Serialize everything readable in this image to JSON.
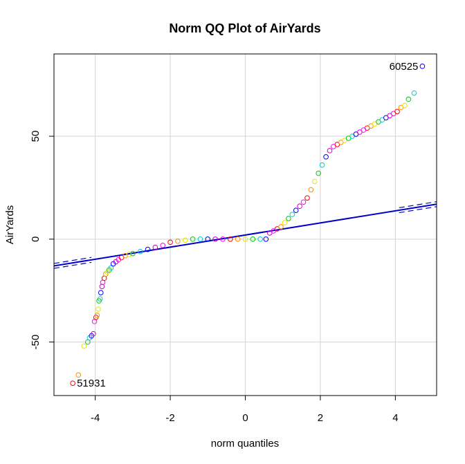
{
  "chart_data": {
    "type": "scatter",
    "title": "Norm QQ Plot of AirYards",
    "xlabel": "norm quantiles",
    "ylabel": "AirYards",
    "xlim": [
      -5.1,
      5.1
    ],
    "ylim": [
      -76,
      90
    ],
    "x_ticks": [
      -4,
      -2,
      0,
      2,
      4
    ],
    "y_ticks": [
      -50,
      0,
      50
    ],
    "grid": true,
    "legend": "none",
    "reference_line": {
      "color": "#0000cc",
      "points": [
        [
          -5.1,
          -13
        ],
        [
          5.1,
          17
        ]
      ]
    },
    "point_colors": [
      "#ff0000",
      "#ff8c00",
      "#e6e600",
      "#00cc00",
      "#00cccc",
      "#0000ff",
      "#cc00cc",
      "#ff00ff"
    ],
    "series": [
      {
        "x": [
          -4.6,
          -4.45,
          -4.3,
          -4.2,
          -4.15,
          -4.1,
          -4.05,
          -4.02,
          -3.98,
          -3.95,
          -3.92,
          -3.9,
          -3.87,
          -3.85,
          -3.82,
          -3.8,
          -3.76,
          -3.72,
          -3.68,
          -3.63,
          -3.58,
          -3.52,
          -3.45,
          -3.38,
          -3.3,
          -3.2,
          -3.1,
          -3.0,
          -2.8,
          -2.6,
          -2.4,
          -2.2,
          -2.0,
          -1.8,
          -1.6,
          -1.4,
          -1.2,
          -1.0,
          -0.8,
          -0.6,
          -0.4,
          -0.2,
          0.0,
          0.2,
          0.4,
          0.55,
          0.65,
          0.75,
          0.85,
          0.95,
          1.05,
          1.15,
          1.25,
          1.35,
          1.45,
          1.55,
          1.65,
          1.75,
          1.85,
          1.95,
          2.05,
          2.15,
          2.25,
          2.35,
          2.45,
          2.55,
          2.65,
          2.75,
          2.85,
          2.95,
          3.05,
          3.15,
          3.25,
          3.35,
          3.45,
          3.55,
          3.65,
          3.75,
          3.85,
          3.95,
          4.05,
          4.15,
          4.25,
          4.35,
          4.5,
          4.72
        ],
        "y": [
          -70,
          -66,
          -52,
          -50,
          -48,
          -47,
          -46,
          -40,
          -38,
          -37,
          -34,
          -30,
          -29,
          -26,
          -23,
          -21,
          -19,
          -17,
          -16,
          -15,
          -14,
          -12,
          -11,
          -10,
          -9,
          -8,
          -7.5,
          -7,
          -6,
          -5,
          -4,
          -3,
          -1.5,
          -1,
          -0.5,
          0,
          0,
          0,
          0,
          0,
          0,
          0,
          0,
          0,
          0,
          0,
          3,
          4,
          5,
          6,
          8,
          10,
          12,
          14,
          16,
          18,
          20,
          24,
          28,
          32,
          36,
          40,
          43,
          45,
          46,
          47,
          48,
          49,
          50,
          51,
          52,
          53,
          54,
          55,
          56,
          57,
          58,
          59,
          60,
          61,
          62,
          64,
          65,
          68,
          71,
          84
        ]
      }
    ],
    "annotations": [
      {
        "text": "60525",
        "x": 4.72,
        "y": 84,
        "anchor": "end"
      },
      {
        "text": "51931",
        "x": -4.6,
        "y": -70,
        "anchor": "start"
      }
    ]
  }
}
